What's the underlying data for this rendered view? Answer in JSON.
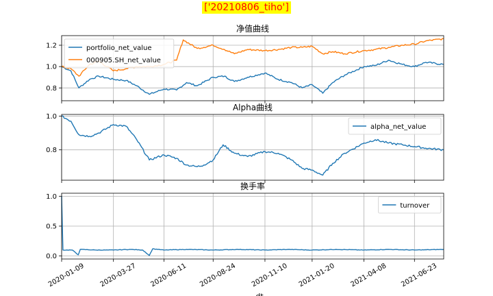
{
  "figure": {
    "suptitle": "['20210806_tiho']",
    "highlight_color": "#ffff00",
    "title_color": "#ff0000",
    "xlabel": "dt",
    "x_tick_labels": [
      "2020-01-09",
      "2020-03-27",
      "2020-06-11",
      "2020-08-24",
      "2020-11-10",
      "2021-01-20",
      "2021-04-08",
      "2021-06-23"
    ],
    "x_start": "2020-01-09",
    "x_end": "2021-08-06"
  },
  "chart_data": [
    {
      "type": "line",
      "title": "净值曲线",
      "ylim": [
        0.68,
        1.29
      ],
      "yticks": [
        0.8,
        1.0,
        1.2
      ],
      "ytick_labels": [
        "0.8",
        "1.0",
        "1.2"
      ],
      "grid": true,
      "legend": "upper-left",
      "series": [
        {
          "name": "portfolio_net_value",
          "color": "#1f77b4",
          "points": [
            [
              "2020-01-09",
              1.0
            ],
            [
              "2020-01-23",
              0.96
            ],
            [
              "2020-02-04",
              0.8
            ],
            [
              "2020-02-20",
              0.88
            ],
            [
              "2020-03-05",
              0.91
            ],
            [
              "2020-03-27",
              0.88
            ],
            [
              "2020-04-15",
              0.87
            ],
            [
              "2020-05-01",
              0.82
            ],
            [
              "2020-05-20",
              0.74
            ],
            [
              "2020-06-11",
              0.79
            ],
            [
              "2020-06-30",
              0.78
            ],
            [
              "2020-07-15",
              0.85
            ],
            [
              "2020-07-31",
              0.82
            ],
            [
              "2020-08-24",
              0.9
            ],
            [
              "2020-09-10",
              0.91
            ],
            [
              "2020-09-25",
              0.86
            ],
            [
              "2020-10-15",
              0.9
            ],
            [
              "2020-11-10",
              0.94
            ],
            [
              "2020-11-30",
              0.88
            ],
            [
              "2020-12-20",
              0.85
            ],
            [
              "2021-01-05",
              0.8
            ],
            [
              "2021-01-20",
              0.83
            ],
            [
              "2021-02-05",
              0.75
            ],
            [
              "2021-02-20",
              0.85
            ],
            [
              "2021-03-10",
              0.92
            ],
            [
              "2021-04-08",
              1.0
            ],
            [
              "2021-04-25",
              1.01
            ],
            [
              "2021-05-15",
              1.06
            ],
            [
              "2021-06-05",
              1.02
            ],
            [
              "2021-06-23",
              1.0
            ],
            [
              "2021-07-10",
              1.04
            ],
            [
              "2021-08-06",
              1.02
            ]
          ]
        },
        {
          "name": "000905.SH_net_value",
          "color": "#ff7f0e",
          "points": [
            [
              "2020-01-09",
              1.0
            ],
            [
              "2020-01-23",
              0.98
            ],
            [
              "2020-02-04",
              0.91
            ],
            [
              "2020-02-20",
              1.02
            ],
            [
              "2020-03-05",
              1.05
            ],
            [
              "2020-03-27",
              0.96
            ],
            [
              "2020-04-15",
              0.98
            ],
            [
              "2020-05-01",
              1.0
            ],
            [
              "2020-05-20",
              1.0
            ],
            [
              "2020-06-11",
              1.02
            ],
            [
              "2020-06-30",
              1.06
            ],
            [
              "2020-07-10",
              1.25
            ],
            [
              "2020-07-31",
              1.17
            ],
            [
              "2020-08-24",
              1.2
            ],
            [
              "2020-09-10",
              1.16
            ],
            [
              "2020-09-25",
              1.12
            ],
            [
              "2020-10-15",
              1.16
            ],
            [
              "2020-11-10",
              1.15
            ],
            [
              "2020-11-30",
              1.16
            ],
            [
              "2020-12-20",
              1.18
            ],
            [
              "2021-01-05",
              1.18
            ],
            [
              "2021-01-20",
              1.19
            ],
            [
              "2021-02-05",
              1.12
            ],
            [
              "2021-02-20",
              1.14
            ],
            [
              "2021-03-10",
              1.12
            ],
            [
              "2021-04-08",
              1.15
            ],
            [
              "2021-04-25",
              1.16
            ],
            [
              "2021-05-15",
              1.18
            ],
            [
              "2021-06-05",
              1.2
            ],
            [
              "2021-06-23",
              1.21
            ],
            [
              "2021-07-10",
              1.24
            ],
            [
              "2021-08-06",
              1.26
            ]
          ]
        }
      ]
    },
    {
      "type": "line",
      "title": "Alpha曲线",
      "ylim": [
        0.62,
        1.01
      ],
      "yticks": [
        0.8,
        1.0
      ],
      "ytick_labels": [
        "0.8",
        "1.0"
      ],
      "grid": true,
      "legend": "upper-right",
      "series": [
        {
          "name": "alpha_net_value",
          "color": "#1f77b4",
          "points": [
            [
              "2020-01-09",
              1.0
            ],
            [
              "2020-01-23",
              0.97
            ],
            [
              "2020-02-04",
              0.89
            ],
            [
              "2020-02-20",
              0.88
            ],
            [
              "2020-03-05",
              0.9
            ],
            [
              "2020-03-27",
              0.95
            ],
            [
              "2020-04-15",
              0.94
            ],
            [
              "2020-05-01",
              0.86
            ],
            [
              "2020-05-20",
              0.74
            ],
            [
              "2020-06-11",
              0.77
            ],
            [
              "2020-06-30",
              0.75
            ],
            [
              "2020-07-15",
              0.71
            ],
            [
              "2020-07-31",
              0.7
            ],
            [
              "2020-08-10",
              0.71
            ],
            [
              "2020-08-24",
              0.74
            ],
            [
              "2020-09-08",
              0.83
            ],
            [
              "2020-09-25",
              0.78
            ],
            [
              "2020-10-15",
              0.76
            ],
            [
              "2020-11-10",
              0.79
            ],
            [
              "2020-11-30",
              0.78
            ],
            [
              "2020-12-20",
              0.74
            ],
            [
              "2021-01-05",
              0.69
            ],
            [
              "2021-01-20",
              0.68
            ],
            [
              "2021-02-05",
              0.65
            ],
            [
              "2021-02-20",
              0.72
            ],
            [
              "2021-03-10",
              0.78
            ],
            [
              "2021-04-08",
              0.84
            ],
            [
              "2021-04-25",
              0.86
            ],
            [
              "2021-05-15",
              0.84
            ],
            [
              "2021-06-05",
              0.83
            ],
            [
              "2021-06-23",
              0.82
            ],
            [
              "2021-07-10",
              0.81
            ],
            [
              "2021-08-06",
              0.8
            ]
          ]
        }
      ]
    },
    {
      "type": "line",
      "title": "换手率",
      "ylim": [
        -0.05,
        1.05
      ],
      "yticks": [
        0.0,
        0.5,
        1.0
      ],
      "ytick_labels": [
        "0.0",
        "0.5",
        "1.0"
      ],
      "grid": true,
      "legend": "upper-right",
      "series": [
        {
          "name": "turnover",
          "color": "#1f77b4",
          "points": [
            [
              "2020-01-09",
              1.0
            ],
            [
              "2020-01-11",
              0.1
            ],
            [
              "2020-01-25",
              0.1
            ],
            [
              "2020-02-03",
              0.02
            ],
            [
              "2020-02-06",
              0.11
            ],
            [
              "2020-03-01",
              0.1
            ],
            [
              "2020-03-27",
              0.1
            ],
            [
              "2020-04-20",
              0.11
            ],
            [
              "2020-05-10",
              0.1
            ],
            [
              "2020-05-20",
              0.01
            ],
            [
              "2020-05-25",
              0.12
            ],
            [
              "2020-06-11",
              0.1
            ],
            [
              "2020-07-15",
              0.11
            ],
            [
              "2020-08-24",
              0.1
            ],
            [
              "2020-09-30",
              0.11
            ],
            [
              "2020-11-10",
              0.1
            ],
            [
              "2020-12-15",
              0.11
            ],
            [
              "2021-01-20",
              0.1
            ],
            [
              "2021-02-25",
              0.11
            ],
            [
              "2021-04-08",
              0.1
            ],
            [
              "2021-05-15",
              0.11
            ],
            [
              "2021-06-23",
              0.1
            ],
            [
              "2021-08-06",
              0.11
            ]
          ]
        }
      ]
    }
  ]
}
